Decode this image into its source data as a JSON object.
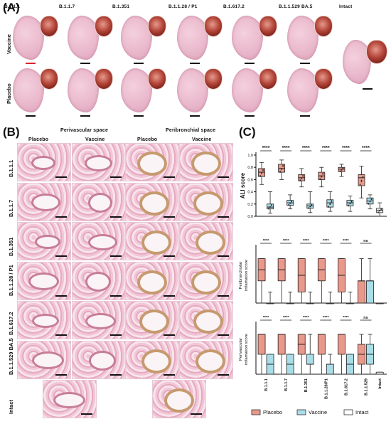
{
  "panels": {
    "a": "(A)",
    "b": "(B)",
    "c": "(C)"
  },
  "panelA": {
    "columns": [
      "B.1.1.1",
      "B.1.1.7",
      "B.1.351",
      "B.1.1.28 / P1",
      "B.1.617.2",
      "B.1.1.529 BA.5",
      "Intact"
    ],
    "rows": [
      "Vaccine",
      "Placebo"
    ]
  },
  "panelB": {
    "group_headers": [
      "Perivascular space",
      "Peribronchial space"
    ],
    "sub_headers": [
      "Placebo",
      "Vaccine",
      "Placebo",
      "Vaccine"
    ],
    "rows": [
      "B.1.1.1",
      "B.1.1.7",
      "B.1.351",
      "B.1.1.28 / P1",
      "B.1.617.2",
      "B.1.1.529 BA.5",
      "Intact"
    ]
  },
  "colors": {
    "placebo": "#e8998b",
    "vaccine": "#a9dde8",
    "intact": "#ffffff",
    "scale_red": "#d9262c"
  },
  "chart_data": [
    {
      "type": "box",
      "ylabel": "ALI score",
      "ylim": [
        0,
        1.0
      ],
      "yticks": [
        "0.0",
        "0.2",
        "0.4",
        "0.6",
        "0.8",
        "1.0"
      ],
      "significance": [
        "****",
        "****",
        "****",
        "****",
        "****",
        "****"
      ],
      "series": [
        {
          "name": "Placebo",
          "boxes": [
            [
              0.52,
              0.65,
              0.72,
              0.78,
              0.88
            ],
            [
              0.6,
              0.72,
              0.78,
              0.85,
              0.92
            ],
            [
              0.48,
              0.58,
              0.63,
              0.68,
              0.78
            ],
            [
              0.48,
              0.6,
              0.66,
              0.72,
              0.8
            ],
            [
              0.65,
              0.73,
              0.77,
              0.8,
              0.85
            ],
            [
              0.3,
              0.5,
              0.63,
              0.68,
              0.82
            ]
          ]
        },
        {
          "name": "Vaccine",
          "boxes": [
            [
              0.05,
              0.12,
              0.15,
              0.2,
              0.4
            ],
            [
              0.12,
              0.18,
              0.22,
              0.26,
              0.35
            ],
            [
              0.06,
              0.13,
              0.17,
              0.2,
              0.4
            ],
            [
              0.08,
              0.15,
              0.22,
              0.27,
              0.4
            ],
            [
              0.08,
              0.17,
              0.22,
              0.26,
              0.33
            ],
            [
              0.12,
              0.2,
              0.25,
              0.3,
              0.35
            ]
          ]
        },
        {
          "name": "Intact",
          "boxes": [
            [
              0.0,
              0.06,
              0.1,
              0.13,
              0.22
            ]
          ]
        }
      ]
    },
    {
      "type": "box",
      "ylabel": "Peribronchiolar inflamation score",
      "ylim": [
        0,
        2.5
      ],
      "significance": [
        "****",
        "****",
        "****",
        "****",
        "****",
        "ns"
      ],
      "series": [
        {
          "name": "Placebo",
          "boxes": [
            [
              0,
              1,
              1.5,
              2,
              2
            ],
            [
              0,
              1,
              1.5,
              2,
              2
            ],
            [
              0,
              0.5,
              1.25,
              2,
              2
            ],
            [
              0,
              1,
              1.5,
              2,
              2
            ],
            [
              0,
              0.5,
              1.25,
              2,
              2
            ],
            [
              0,
              0,
              1,
              1,
              2
            ]
          ]
        },
        {
          "name": "Vaccine",
          "boxes": [
            [
              0,
              0,
              0,
              0,
              0.5
            ],
            [
              0,
              0,
              0,
              0,
              0.5
            ],
            [
              0,
              0,
              0,
              0,
              0.5
            ],
            [
              0,
              0,
              0,
              0,
              0.5
            ],
            [
              0,
              0,
              0,
              0,
              0.5
            ],
            [
              0,
              0,
              1,
              1,
              2
            ]
          ]
        },
        {
          "name": "Intact",
          "boxes": [
            [
              0,
              0,
              0,
              0,
              0
            ]
          ]
        }
      ]
    },
    {
      "type": "box",
      "ylabel": "Perivascular inflamation score",
      "ylim": [
        0,
        2.5
      ],
      "categories": [
        "B.1.1.1",
        "B.1.1.7",
        "B.1.351",
        "B.1.1.28/P1",
        "B.1.617.2",
        "B.1.1.529",
        "Intact"
      ],
      "significance": [
        "****",
        "****",
        "****",
        "****",
        "****",
        "ns"
      ],
      "series": [
        {
          "name": "Placebo",
          "boxes": [
            [
              0,
              1,
              2,
              2,
              2
            ],
            [
              0,
              1,
              2,
              2,
              2
            ],
            [
              0,
              1,
              1.5,
              2,
              2
            ],
            [
              0,
              1,
              2,
              2,
              2
            ],
            [
              0,
              1,
              2,
              2,
              2
            ],
            [
              0,
              0.5,
              1,
              1.5,
              2
            ]
          ]
        },
        {
          "name": "Vaccine",
          "boxes": [
            [
              0,
              0,
              0.5,
              1,
              1
            ],
            [
              0,
              0,
              0.5,
              1,
              1
            ],
            [
              0,
              0.5,
              0.5,
              1,
              2
            ],
            [
              0,
              0,
              0.5,
              0.5,
              1
            ],
            [
              0,
              0,
              0.5,
              1,
              1
            ],
            [
              0,
              0.5,
              1,
              1.5,
              2
            ]
          ]
        },
        {
          "name": "Intact",
          "boxes": [
            [
              0,
              0,
              0,
              0.1,
              0.1
            ]
          ]
        }
      ]
    }
  ],
  "legend": [
    "Placebo",
    "Vaccine",
    "Intact"
  ]
}
